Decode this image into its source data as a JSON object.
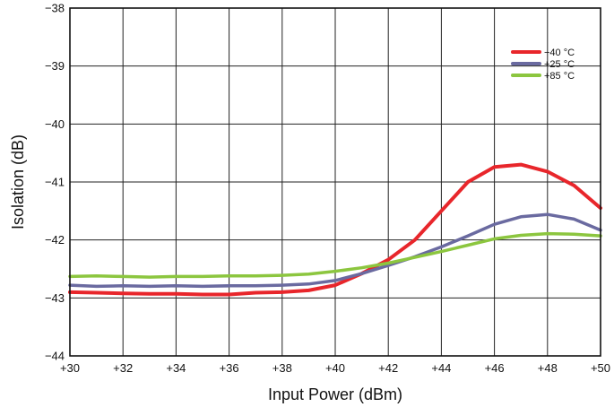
{
  "chart_data": {
    "type": "line",
    "title": "",
    "xlabel": "Input Power (dBm)",
    "ylabel": "Isolation (dB)",
    "xlim": [
      30,
      50
    ],
    "ylim": [
      -44,
      -38
    ],
    "x_ticks": [
      30,
      32,
      34,
      36,
      38,
      40,
      42,
      44,
      46,
      48,
      50
    ],
    "x_tick_labels": [
      "+30",
      "+32",
      "+34",
      "+36",
      "+38",
      "+40",
      "+42",
      "+44",
      "+46",
      "+48",
      "+50"
    ],
    "y_ticks": [
      -44,
      -43,
      -42,
      -41,
      -40,
      -39,
      -38
    ],
    "y_tick_labels": [
      "−44",
      "−43",
      "−42",
      "−41",
      "−40",
      "−39",
      "−38"
    ],
    "grid": true,
    "legend_position": "top-right",
    "x": [
      30,
      31,
      32,
      33,
      34,
      35,
      36,
      37,
      38,
      39,
      40,
      41,
      42,
      43,
      44,
      45,
      46,
      47,
      48,
      49,
      50
    ],
    "series": [
      {
        "name": "−40 °C",
        "color": "#e8262b",
        "values": [
          -42.9,
          -42.91,
          -42.92,
          -42.93,
          -42.93,
          -42.94,
          -42.94,
          -42.91,
          -42.9,
          -42.87,
          -42.78,
          -42.58,
          -42.34,
          -42.0,
          -41.5,
          -41.0,
          -40.74,
          -40.7,
          -40.82,
          -41.06,
          -41.45
        ]
      },
      {
        "name": "+25 °C",
        "color": "#6a6aa0",
        "values": [
          -42.78,
          -42.8,
          -42.79,
          -42.8,
          -42.79,
          -42.8,
          -42.79,
          -42.79,
          -42.78,
          -42.76,
          -42.7,
          -42.58,
          -42.44,
          -42.29,
          -42.12,
          -41.93,
          -41.73,
          -41.6,
          -41.56,
          -41.64,
          -41.83
        ]
      },
      {
        "name": "+85 °C",
        "color": "#8cc63f",
        "values": [
          -42.63,
          -42.62,
          -42.63,
          -42.64,
          -42.63,
          -42.63,
          -42.62,
          -42.62,
          -42.61,
          -42.59,
          -42.54,
          -42.48,
          -42.4,
          -42.3,
          -42.2,
          -42.09,
          -41.98,
          -41.92,
          -41.89,
          -41.9,
          -41.93
        ]
      }
    ]
  }
}
